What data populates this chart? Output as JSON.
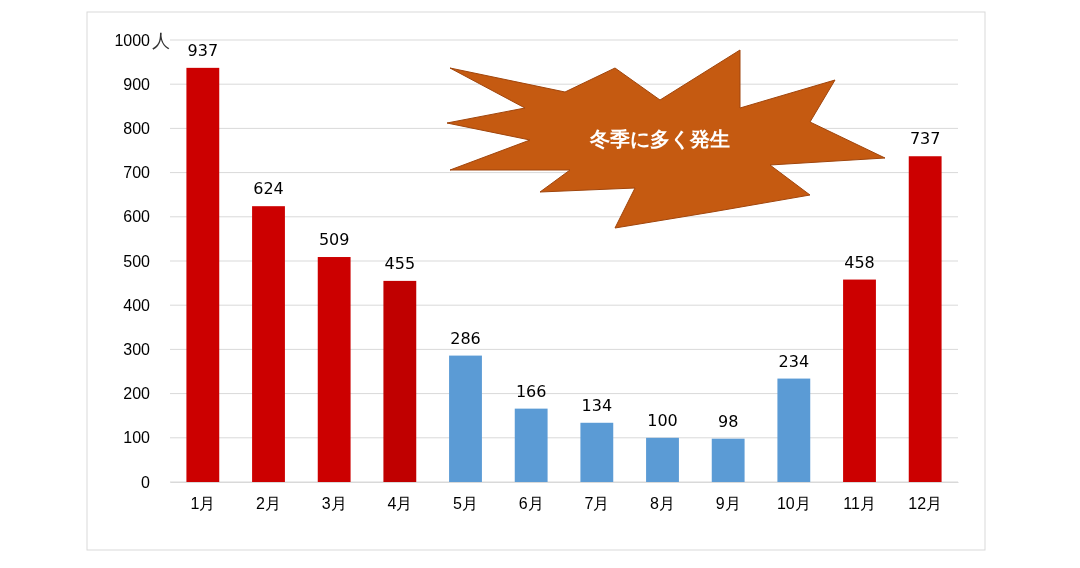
{
  "chart_data": {
    "type": "bar",
    "categories": [
      "1月",
      "2月",
      "3月",
      "4月",
      "5月",
      "6月",
      "7月",
      "8月",
      "9月",
      "10月",
      "11月",
      "12月"
    ],
    "values": [
      937,
      624,
      509,
      455,
      286,
      166,
      134,
      100,
      98,
      234,
      458,
      737
    ],
    "colors": [
      "#cc0000",
      "#cc0000",
      "#cc0000",
      "#c00000",
      "#5b9bd5",
      "#5b9bd5",
      "#5b9bd5",
      "#5b9bd5",
      "#5b9bd5",
      "#5b9bd5",
      "#cc0000",
      "#cc0000"
    ],
    "ylabel": "人",
    "ylim": [
      0,
      1000
    ],
    "yticks": [
      0,
      100,
      200,
      300,
      400,
      500,
      600,
      700,
      800,
      900,
      1000
    ],
    "grid": "y",
    "data_labels": true,
    "annotations": [
      "冬季に多く発生"
    ]
  }
}
